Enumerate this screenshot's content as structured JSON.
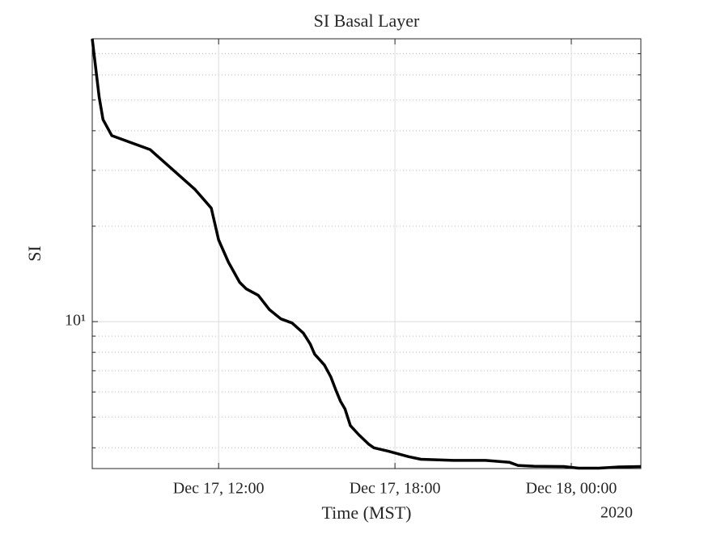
{
  "chart_data": {
    "type": "line",
    "title": "SI Basal Layer",
    "xlabel": "Time (MST)",
    "ylabel": "SI",
    "year_label": "2020",
    "x": [
      "2020-12-17T07:42",
      "2020-12-17T07:56",
      "2020-12-17T08:04",
      "2020-12-17T08:22",
      "2020-12-17T09:40",
      "2020-12-17T11:12",
      "2020-12-17T11:45",
      "2020-12-17T12:00",
      "2020-12-17T12:20",
      "2020-12-17T12:43",
      "2020-12-17T12:56",
      "2020-12-17T13:21",
      "2020-12-17T13:44",
      "2020-12-17T14:07",
      "2020-12-17T14:30",
      "2020-12-17T14:53",
      "2020-12-17T15:07",
      "2020-12-17T15:16",
      "2020-12-17T15:36",
      "2020-12-17T15:49",
      "2020-12-17T15:59",
      "2020-12-17T16:09",
      "2020-12-17T16:18",
      "2020-12-17T16:29",
      "2020-12-17T16:46",
      "2020-12-17T17:07",
      "2020-12-17T17:17",
      "2020-12-17T17:47",
      "2020-12-17T18:28",
      "2020-12-17T18:53",
      "2020-12-17T19:59",
      "2020-12-17T21:05",
      "2020-12-17T21:54",
      "2020-12-17T22:11",
      "2020-12-17T22:44",
      "2020-12-17T23:45",
      "2020-12-18T00:15",
      "2020-12-18T00:56",
      "2020-12-18T01:37",
      "2020-12-18T02:22"
    ],
    "series": [
      {
        "name": "SI",
        "color": "#000000",
        "values": [
          78,
          51.2,
          43.4,
          38.6,
          34.9,
          26.1,
          22.8,
          18.1,
          15.4,
          13.3,
          12.7,
          12.1,
          10.9,
          10.2,
          9.9,
          9.2,
          8.5,
          7.9,
          7.3,
          6.7,
          6.1,
          5.6,
          5.3,
          4.7,
          4.4,
          4.1,
          4.0,
          3.9,
          3.75,
          3.68,
          3.65,
          3.65,
          3.6,
          3.52,
          3.5,
          3.49,
          3.45,
          3.45,
          3.48,
          3.49
        ]
      }
    ],
    "xlim": [
      "2020-12-17T07:42",
      "2020-12-18T02:22"
    ],
    "xticks": [
      {
        "value": "2020-12-17T12:00",
        "label": "Dec 17, 12:00"
      },
      {
        "value": "2020-12-17T18:00",
        "label": "Dec 17, 18:00"
      },
      {
        "value": "2020-12-18T00:00",
        "label": "Dec 18, 00:00"
      }
    ],
    "ylim": [
      3.44,
      78
    ],
    "log_y": true,
    "yticks": [
      {
        "value": 10,
        "label": "10¹"
      }
    ],
    "yminor": [
      4,
      5,
      6,
      7,
      8,
      9,
      20,
      30,
      40,
      50,
      60,
      70
    ],
    "grid": true
  }
}
